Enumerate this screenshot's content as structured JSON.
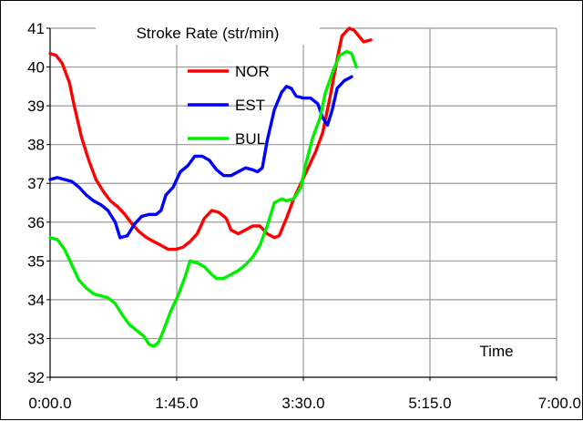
{
  "chart_data": {
    "type": "line",
    "title": "Stroke Rate (str/min)",
    "xlabel": "Time",
    "ylabel": "",
    "xlim": [
      0,
      420
    ],
    "ylim": [
      32,
      41
    ],
    "x_ticks": [
      {
        "value": 0,
        "label": "0:00.0"
      },
      {
        "value": 105,
        "label": "1:45.0"
      },
      {
        "value": 210,
        "label": "3:30.0"
      },
      {
        "value": 315,
        "label": "5:15.0"
      },
      {
        "value": 420,
        "label": "7:00.0"
      }
    ],
    "y_ticks": [
      32,
      33,
      34,
      35,
      36,
      37,
      38,
      39,
      40,
      41
    ],
    "grid": true,
    "legend_position": "top-left",
    "series": [
      {
        "name": "NOR",
        "color": "#ff0000",
        "points": [
          [
            0,
            40.35
          ],
          [
            5,
            40.3
          ],
          [
            10,
            40.1
          ],
          [
            16,
            39.6
          ],
          [
            20,
            39.0
          ],
          [
            26,
            38.2
          ],
          [
            32,
            37.6
          ],
          [
            38,
            37.1
          ],
          [
            44,
            36.8
          ],
          [
            50,
            36.55
          ],
          [
            56,
            36.4
          ],
          [
            62,
            36.2
          ],
          [
            68,
            35.95
          ],
          [
            74,
            35.75
          ],
          [
            80,
            35.6
          ],
          [
            86,
            35.5
          ],
          [
            92,
            35.4
          ],
          [
            98,
            35.3
          ],
          [
            104,
            35.3
          ],
          [
            110,
            35.35
          ],
          [
            116,
            35.5
          ],
          [
            122,
            35.7
          ],
          [
            128,
            36.1
          ],
          [
            134,
            36.3
          ],
          [
            140,
            36.25
          ],
          [
            146,
            36.1
          ],
          [
            150,
            35.8
          ],
          [
            156,
            35.7
          ],
          [
            162,
            35.8
          ],
          [
            168,
            35.9
          ],
          [
            174,
            35.9
          ],
          [
            180,
            35.7
          ],
          [
            186,
            35.6
          ],
          [
            190,
            35.65
          ],
          [
            196,
            36.1
          ],
          [
            202,
            36.6
          ],
          [
            208,
            37.0
          ],
          [
            214,
            37.4
          ],
          [
            220,
            37.8
          ],
          [
            226,
            38.3
          ],
          [
            232,
            39.2
          ],
          [
            238,
            40.2
          ],
          [
            242,
            40.8
          ],
          [
            248,
            41.0
          ],
          [
            252,
            40.95
          ],
          [
            256,
            40.8
          ],
          [
            260,
            40.65
          ],
          [
            266,
            40.7
          ]
        ]
      },
      {
        "name": "EST",
        "color": "#0000ff",
        "points": [
          [
            0,
            37.1
          ],
          [
            6,
            37.15
          ],
          [
            12,
            37.1
          ],
          [
            18,
            37.05
          ],
          [
            24,
            36.9
          ],
          [
            30,
            36.7
          ],
          [
            36,
            36.55
          ],
          [
            42,
            36.45
          ],
          [
            48,
            36.3
          ],
          [
            54,
            36.0
          ],
          [
            58,
            35.6
          ],
          [
            64,
            35.65
          ],
          [
            70,
            35.95
          ],
          [
            76,
            36.15
          ],
          [
            82,
            36.2
          ],
          [
            88,
            36.2
          ],
          [
            92,
            36.3
          ],
          [
            96,
            36.7
          ],
          [
            102,
            36.9
          ],
          [
            108,
            37.3
          ],
          [
            114,
            37.45
          ],
          [
            120,
            37.7
          ],
          [
            126,
            37.7
          ],
          [
            132,
            37.6
          ],
          [
            138,
            37.35
          ],
          [
            144,
            37.2
          ],
          [
            150,
            37.2
          ],
          [
            156,
            37.3
          ],
          [
            162,
            37.4
          ],
          [
            168,
            37.35
          ],
          [
            172,
            37.3
          ],
          [
            176,
            37.4
          ],
          [
            180,
            38.1
          ],
          [
            186,
            38.9
          ],
          [
            192,
            39.35
          ],
          [
            196,
            39.5
          ],
          [
            200,
            39.45
          ],
          [
            204,
            39.25
          ],
          [
            210,
            39.2
          ],
          [
            216,
            39.2
          ],
          [
            222,
            39.05
          ],
          [
            226,
            38.7
          ],
          [
            230,
            38.5
          ],
          [
            234,
            38.9
          ],
          [
            238,
            39.45
          ],
          [
            244,
            39.65
          ],
          [
            250,
            39.75
          ]
        ]
      },
      {
        "name": "BUL",
        "color": "#00ee00",
        "points": [
          [
            0,
            35.6
          ],
          [
            6,
            35.55
          ],
          [
            12,
            35.3
          ],
          [
            18,
            34.9
          ],
          [
            24,
            34.5
          ],
          [
            30,
            34.3
          ],
          [
            36,
            34.15
          ],
          [
            42,
            34.1
          ],
          [
            48,
            34.05
          ],
          [
            54,
            33.9
          ],
          [
            60,
            33.6
          ],
          [
            66,
            33.35
          ],
          [
            72,
            33.2
          ],
          [
            78,
            33.05
          ],
          [
            82,
            32.85
          ],
          [
            86,
            32.8
          ],
          [
            90,
            32.9
          ],
          [
            94,
            33.2
          ],
          [
            100,
            33.7
          ],
          [
            106,
            34.1
          ],
          [
            112,
            34.6
          ],
          [
            116,
            35.0
          ],
          [
            122,
            34.95
          ],
          [
            128,
            34.85
          ],
          [
            134,
            34.65
          ],
          [
            138,
            34.55
          ],
          [
            144,
            34.55
          ],
          [
            150,
            34.65
          ],
          [
            156,
            34.75
          ],
          [
            162,
            34.9
          ],
          [
            168,
            35.1
          ],
          [
            174,
            35.4
          ],
          [
            180,
            35.9
          ],
          [
            186,
            36.5
          ],
          [
            192,
            36.6
          ],
          [
            196,
            36.55
          ],
          [
            202,
            36.6
          ],
          [
            208,
            36.9
          ],
          [
            212,
            37.5
          ],
          [
            218,
            38.2
          ],
          [
            224,
            38.7
          ],
          [
            228,
            39.3
          ],
          [
            234,
            39.85
          ],
          [
            240,
            40.3
          ],
          [
            246,
            40.4
          ],
          [
            250,
            40.35
          ],
          [
            254,
            40.0
          ]
        ]
      }
    ]
  }
}
